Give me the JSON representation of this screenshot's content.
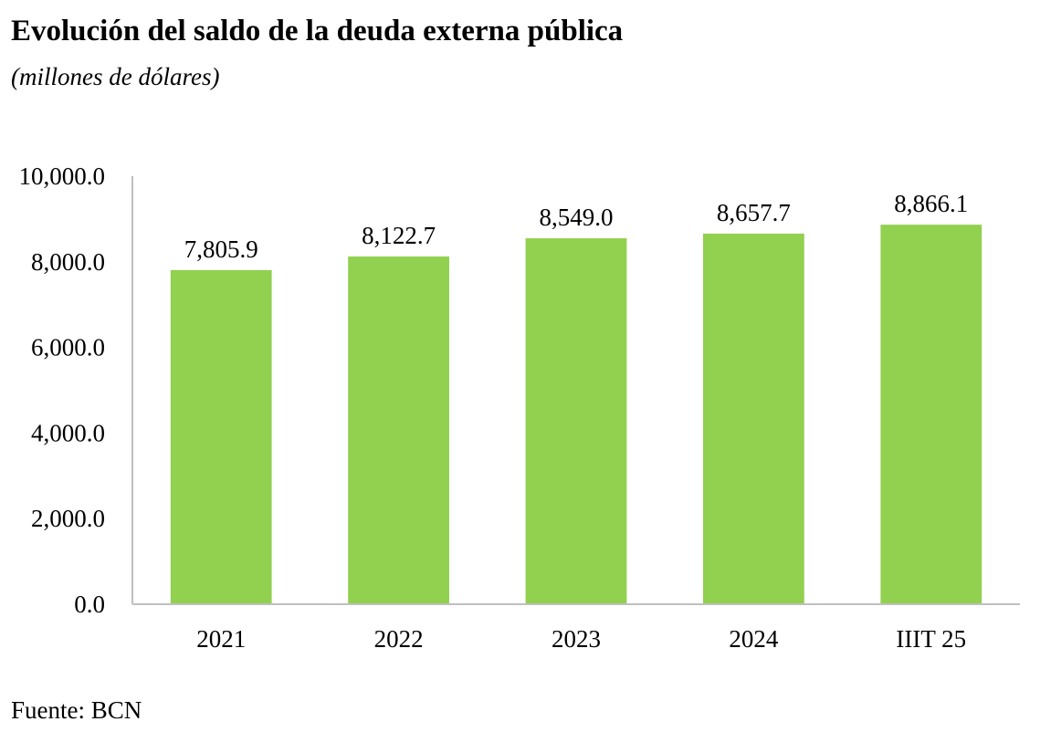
{
  "chart_data": {
    "type": "bar",
    "title": "Evolución del saldo de la deuda externa pública",
    "subtitle": "(millones de dólares)",
    "categories": [
      "2021",
      "2022",
      "2023",
      "2024",
      "IIIT 25"
    ],
    "values": [
      7805.9,
      8122.7,
      8549.0,
      8657.7,
      8866.1
    ],
    "value_labels": [
      "7,805.9",
      "8,122.7",
      "8,549.0",
      "8,657.7",
      "8,866.1"
    ],
    "ylim": [
      0,
      10000
    ],
    "yticks": [
      0,
      2000,
      4000,
      6000,
      8000,
      10000
    ],
    "ytick_labels": [
      "0.0",
      "2,000.0",
      "4,000.0",
      "6,000.0",
      "8,000.0",
      "10,000.0"
    ],
    "xlabel": "",
    "ylabel": "",
    "grid": false,
    "legend": "none",
    "bar_color": "#92d050",
    "axis_color": "#bfbfbf",
    "source": "Fuente: BCN"
  }
}
